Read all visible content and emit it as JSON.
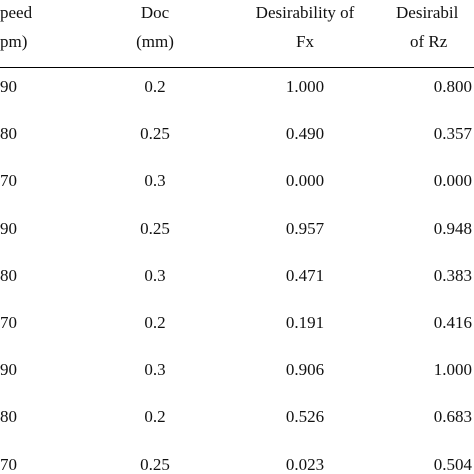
{
  "table": {
    "header": [
      [
        "peed",
        "pm)"
      ],
      [
        "Doc",
        "(mm)"
      ],
      [
        "Desirability of",
        "Fx"
      ],
      [
        "Desirabil",
        "of Rz"
      ]
    ],
    "rows": [
      [
        "90",
        "0.2",
        "1.000",
        "0.800"
      ],
      [
        "80",
        "0.25",
        "0.490",
        "0.357"
      ],
      [
        "70",
        "0.3",
        "0.000",
        "0.000"
      ],
      [
        "90",
        "0.25",
        "0.957",
        "0.948"
      ],
      [
        "80",
        "0.3",
        "0.471",
        "0.383"
      ],
      [
        "70",
        "0.2",
        "0.191",
        "0.416"
      ],
      [
        "90",
        "0.3",
        "0.906",
        "1.000"
      ],
      [
        "80",
        "0.2",
        "0.526",
        "0.683"
      ],
      [
        "70",
        "0.25",
        "0.023",
        "0.504"
      ]
    ]
  }
}
